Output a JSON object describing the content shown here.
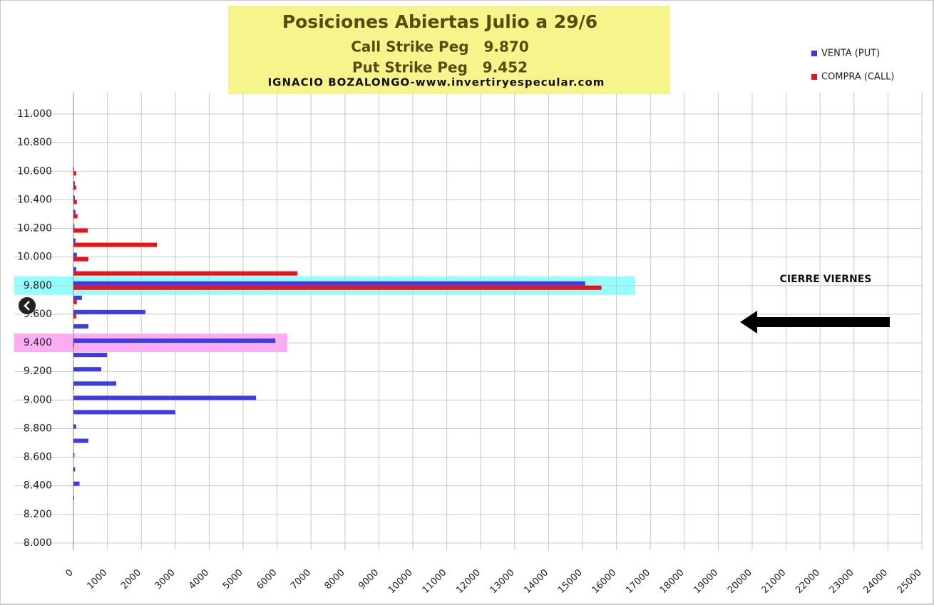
{
  "chart_data": {
    "type": "hbar",
    "title": "Posiciones Abiertas Julio a 29/6",
    "subtitles": [
      "Call Strike Peg   9.870",
      "Put Strike Peg   9.452"
    ],
    "credit": "IGNACIO BOZALONGO-www.invertiryespecular.com",
    "annotation": "CIERRE VIERNES",
    "strikes": [
      8300,
      8400,
      8500,
      8600,
      8700,
      8800,
      8900,
      9000,
      9100,
      9200,
      9300,
      9400,
      9500,
      9600,
      9700,
      9800,
      9900,
      10000,
      10100,
      10200,
      10300,
      10400,
      10500,
      10600
    ],
    "series": [
      {
        "name": "VENTA (PUT)",
        "color": "#3a3af0",
        "values": [
          20,
          180,
          50,
          30,
          440,
          80,
          3000,
          5380,
          1260,
          820,
          990,
          5950,
          440,
          2120,
          250,
          15080,
          80,
          100,
          60,
          30,
          60,
          40,
          40,
          20
        ]
      },
      {
        "name": "COMPRA (CALL)",
        "color": "#ee1111",
        "values": [
          0,
          0,
          0,
          0,
          0,
          0,
          0,
          0,
          20,
          0,
          0,
          20,
          0,
          80,
          100,
          15560,
          6600,
          440,
          2460,
          420,
          120,
          100,
          80,
          80
        ]
      }
    ],
    "highlights": [
      {
        "y": 9800,
        "x_end": 16550,
        "color": "#80ffff"
      },
      {
        "y": 9400,
        "x_end": 6300,
        "color": "#ff9cf5"
      }
    ],
    "xlim": [
      0,
      25000
    ],
    "xticks": [
      0,
      1000,
      2000,
      3000,
      4000,
      5000,
      6000,
      7000,
      8000,
      9000,
      10000,
      11000,
      12000,
      13000,
      14000,
      15000,
      16000,
      17000,
      18000,
      19000,
      20000,
      21000,
      22000,
      23000,
      24000,
      25000
    ],
    "ylim": [
      8000,
      11000
    ],
    "yticks": [
      {
        "value": 8000,
        "label": "8.000"
      },
      {
        "value": 8200,
        "label": "8.200"
      },
      {
        "value": 8400,
        "label": "8.400"
      },
      {
        "value": 8600,
        "label": "8.600"
      },
      {
        "value": 8800,
        "label": "8.800"
      },
      {
        "value": 9000,
        "label": "9.000"
      },
      {
        "value": 9200,
        "label": "9.200"
      },
      {
        "value": 9400,
        "label": "9.400"
      },
      {
        "value": 9600,
        "label": "9.600"
      },
      {
        "value": 9800,
        "label": "9.800"
      },
      {
        "value": 10000,
        "label": "10.000"
      },
      {
        "value": 10200,
        "label": "10.200"
      },
      {
        "value": 10400,
        "label": "10.400"
      },
      {
        "value": 10600,
        "label": "10.600"
      },
      {
        "value": 10800,
        "label": "10.800"
      },
      {
        "value": 11000,
        "label": "11.000"
      }
    ],
    "grid": true,
    "legend": "top-right"
  }
}
